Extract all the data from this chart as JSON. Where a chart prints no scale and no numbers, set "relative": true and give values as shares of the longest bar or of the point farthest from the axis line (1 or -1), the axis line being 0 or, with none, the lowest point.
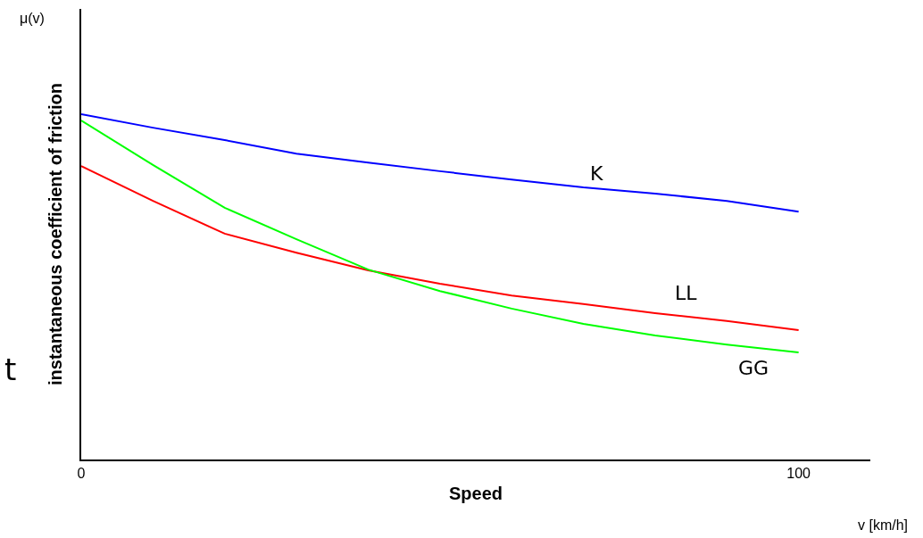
{
  "chart_data": {
    "type": "line",
    "relative": true,
    "xlabel": "Speed",
    "ylabel": "instantaneous coefficient of friction",
    "x": [
      0,
      10,
      20,
      30,
      40,
      50,
      60,
      70,
      80,
      90,
      100
    ],
    "xlim": [
      0,
      110
    ],
    "xticks": [
      0,
      100
    ],
    "legend": false,
    "marker": "none",
    "line_style": "solid",
    "annotations": [
      "μ(v)",
      "t",
      "v [km/h]"
    ],
    "series": [
      {
        "name": "K",
        "color": "#0000ff",
        "values": [
          1.0,
          0.961,
          0.925,
          0.886,
          0.86,
          0.835,
          0.811,
          0.788,
          0.77,
          0.749,
          0.718
        ]
      },
      {
        "name": "LL",
        "color": "#ff0000",
        "values": [
          0.85,
          0.749,
          0.654,
          0.599,
          0.548,
          0.509,
          0.475,
          0.45,
          0.424,
          0.401,
          0.375
        ]
      },
      {
        "name": "GG",
        "color": "#00ff00",
        "values": [
          0.982,
          0.853,
          0.729,
          0.638,
          0.55,
          0.488,
          0.437,
          0.393,
          0.359,
          0.333,
          0.31
        ]
      }
    ]
  }
}
